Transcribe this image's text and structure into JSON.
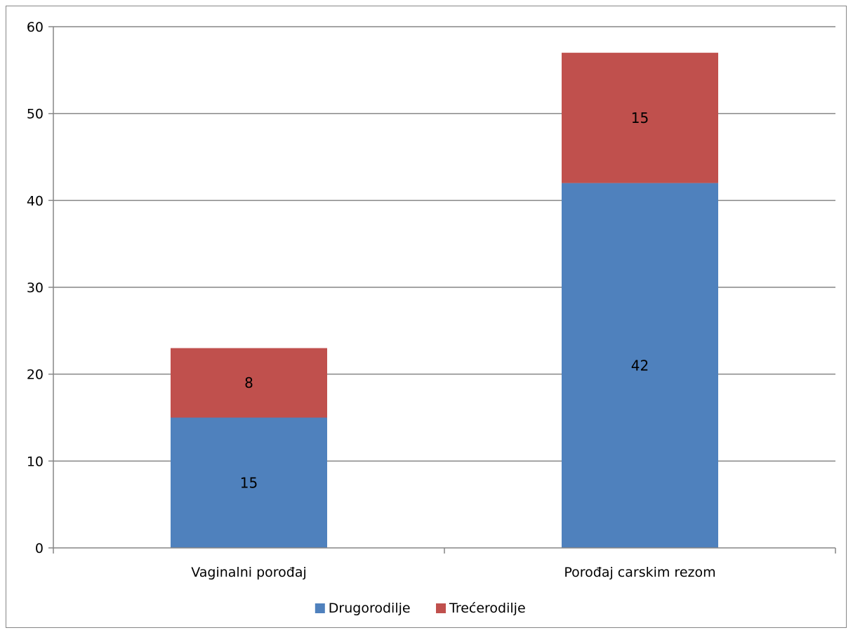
{
  "chart_data": {
    "type": "bar",
    "stacked": true,
    "categories": [
      "Vaginalni porođaj",
      "Porođaj carskim rezom"
    ],
    "series": [
      {
        "name": "Drugorodilje",
        "values": [
          15,
          42
        ],
        "color": "#4F81BD"
      },
      {
        "name": "Trećerodilje",
        "values": [
          8,
          15
        ],
        "color": "#C0504D"
      }
    ],
    "title": "",
    "xlabel": "",
    "ylabel": "",
    "ylim": [
      0,
      60
    ],
    "yticks": [
      0,
      10,
      20,
      30,
      40,
      50,
      60
    ],
    "grid": true,
    "legend": "bottom",
    "data_labels": true
  }
}
